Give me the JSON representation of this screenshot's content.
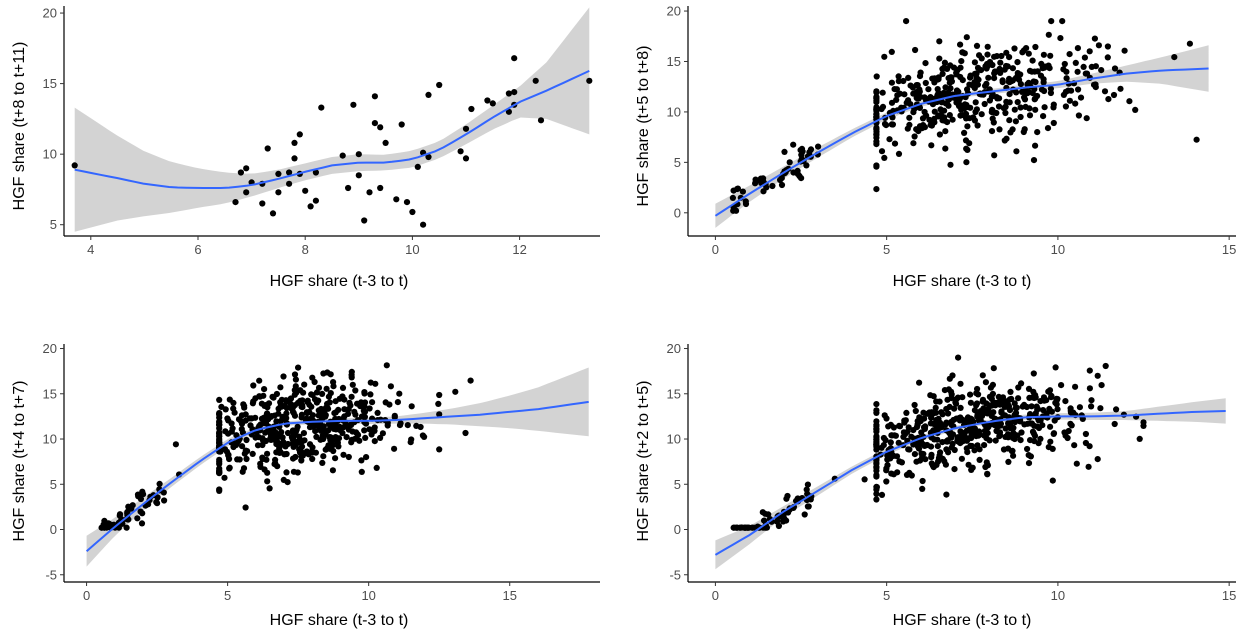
{
  "chart_data": [
    {
      "type": "scatter",
      "xlabel": "HGF share (t-3 to t)",
      "ylabel": "HGF share (t+8 to t+11)",
      "xlim": [
        3.5,
        13.5
      ],
      "ylim": [
        4.2,
        20.5
      ],
      "xticks": [
        4,
        6,
        8,
        10,
        12
      ],
      "yticks": [
        5,
        10,
        15,
        20
      ],
      "grid": false,
      "points": [
        [
          3.7,
          9.2
        ],
        [
          6.7,
          6.6
        ],
        [
          6.8,
          8.7
        ],
        [
          6.9,
          9.0
        ],
        [
          6.9,
          7.3
        ],
        [
          7.0,
          8.0
        ],
        [
          7.2,
          7.9
        ],
        [
          7.2,
          6.5
        ],
        [
          7.3,
          10.4
        ],
        [
          7.4,
          5.8
        ],
        [
          7.5,
          8.6
        ],
        [
          7.5,
          7.3
        ],
        [
          7.7,
          8.7
        ],
        [
          7.7,
          7.9
        ],
        [
          7.8,
          10.8
        ],
        [
          7.8,
          9.7
        ],
        [
          7.9,
          11.4
        ],
        [
          7.9,
          8.6
        ],
        [
          8.0,
          7.4
        ],
        [
          8.1,
          6.3
        ],
        [
          8.2,
          8.7
        ],
        [
          8.2,
          6.7
        ],
        [
          8.3,
          13.3
        ],
        [
          8.7,
          9.9
        ],
        [
          8.8,
          7.6
        ],
        [
          8.9,
          13.5
        ],
        [
          9.0,
          8.5
        ],
        [
          9.0,
          10.0
        ],
        [
          9.1,
          5.3
        ],
        [
          9.2,
          7.3
        ],
        [
          9.3,
          12.2
        ],
        [
          9.3,
          14.1
        ],
        [
          9.4,
          7.6
        ],
        [
          9.4,
          11.9
        ],
        [
          9.5,
          10.8
        ],
        [
          9.7,
          6.8
        ],
        [
          9.8,
          12.1
        ],
        [
          9.9,
          6.6
        ],
        [
          10.0,
          5.9
        ],
        [
          10.1,
          9.1
        ],
        [
          10.2,
          10.1
        ],
        [
          10.2,
          5.0
        ],
        [
          10.3,
          14.2
        ],
        [
          10.3,
          9.8
        ],
        [
          10.5,
          14.9
        ],
        [
          10.9,
          10.2
        ],
        [
          11.0,
          9.7
        ],
        [
          11.0,
          11.8
        ],
        [
          11.1,
          13.2
        ],
        [
          11.4,
          13.8
        ],
        [
          11.5,
          13.6
        ],
        [
          11.8,
          14.3
        ],
        [
          11.8,
          13.0
        ],
        [
          11.9,
          14.4
        ],
        [
          11.9,
          13.5
        ],
        [
          11.9,
          16.8
        ],
        [
          12.3,
          15.2
        ],
        [
          12.4,
          12.4
        ],
        [
          13.3,
          15.2
        ]
      ],
      "smooth": [
        [
          3.7,
          8.9
        ],
        [
          4.5,
          8.3
        ],
        [
          5.0,
          7.9
        ],
        [
          5.5,
          7.65
        ],
        [
          6.0,
          7.6
        ],
        [
          6.5,
          7.6
        ],
        [
          7.0,
          7.8
        ],
        [
          7.5,
          8.25
        ],
        [
          8.0,
          8.75
        ],
        [
          8.5,
          9.2
        ],
        [
          9.0,
          9.4
        ],
        [
          9.5,
          9.4
        ],
        [
          10.0,
          9.65
        ],
        [
          10.5,
          10.3
        ],
        [
          11.0,
          11.4
        ],
        [
          11.5,
          12.6
        ],
        [
          12.0,
          13.7
        ],
        [
          12.5,
          14.5
        ],
        [
          13.3,
          15.9
        ]
      ],
      "band_half_width": [
        [
          3.7,
          4.4
        ],
        [
          4.5,
          3.0
        ],
        [
          5.0,
          2.3
        ],
        [
          5.5,
          1.8
        ],
        [
          6.0,
          1.4
        ],
        [
          6.5,
          1.1
        ],
        [
          7.0,
          0.8
        ],
        [
          7.5,
          0.65
        ],
        [
          8.0,
          0.6
        ],
        [
          8.5,
          0.6
        ],
        [
          9.0,
          0.6
        ],
        [
          9.5,
          0.55
        ],
        [
          10.0,
          0.6
        ],
        [
          10.5,
          0.6
        ],
        [
          11.0,
          0.7
        ],
        [
          11.5,
          0.85
        ],
        [
          12.0,
          1.1
        ],
        [
          12.5,
          2.0
        ],
        [
          13.3,
          4.5
        ]
      ]
    },
    {
      "type": "scatter",
      "xlabel": "HGF share (t-3 to t)",
      "ylabel": "HGF share (t+5 to t+8)",
      "xlim": [
        -0.8,
        15.2
      ],
      "ylim": [
        -2.3,
        20.5
      ],
      "xticks": [
        0,
        5,
        10,
        15
      ],
      "yticks": [
        0,
        5,
        10,
        15,
        20
      ],
      "grid": false,
      "smooth": [
        [
          0.0,
          -0.3
        ],
        [
          1.0,
          1.9
        ],
        [
          2.0,
          4.0
        ],
        [
          3.0,
          6.0
        ],
        [
          4.0,
          7.9
        ],
        [
          5.0,
          9.6
        ],
        [
          6.0,
          10.8
        ],
        [
          7.0,
          11.6
        ],
        [
          8.0,
          12.0
        ],
        [
          9.0,
          12.4
        ],
        [
          10.0,
          12.7
        ],
        [
          11.0,
          13.3
        ],
        [
          12.0,
          13.8
        ],
        [
          13.0,
          14.1
        ],
        [
          14.4,
          14.3
        ]
      ],
      "band_half_width": [
        [
          0.0,
          1.2
        ],
        [
          1.0,
          0.8
        ],
        [
          2.0,
          0.6
        ],
        [
          3.0,
          0.5
        ],
        [
          4.0,
          0.4
        ],
        [
          5.0,
          0.35
        ],
        [
          6.0,
          0.3
        ],
        [
          7.0,
          0.25
        ],
        [
          8.0,
          0.25
        ],
        [
          9.0,
          0.3
        ],
        [
          10.0,
          0.35
        ],
        [
          11.0,
          0.5
        ],
        [
          12.0,
          0.8
        ],
        [
          13.0,
          1.3
        ],
        [
          14.4,
          2.3
        ]
      ],
      "points_generated": {
        "count": 520,
        "x_range": [
          0.5,
          14.4
        ],
        "noise": 2.4
      }
    },
    {
      "type": "scatter",
      "xlabel": "HGF share (t-3 to t)",
      "ylabel": "HGF share (t+4 to t+7)",
      "xlim": [
        -0.8,
        18.2
      ],
      "ylim": [
        -5.8,
        20.5
      ],
      "xticks": [
        0,
        5,
        10,
        15
      ],
      "yticks": [
        -5,
        0,
        5,
        10,
        15,
        20
      ],
      "grid": false,
      "smooth": [
        [
          0.0,
          -2.4
        ],
        [
          1.0,
          0.3
        ],
        [
          2.0,
          2.8
        ],
        [
          3.0,
          5.2
        ],
        [
          4.0,
          7.5
        ],
        [
          5.0,
          9.6
        ],
        [
          6.0,
          11.0
        ],
        [
          7.0,
          11.7
        ],
        [
          8.0,
          11.9
        ],
        [
          9.0,
          12.0
        ],
        [
          10.0,
          12.0
        ],
        [
          11.0,
          12.1
        ],
        [
          12.0,
          12.3
        ],
        [
          13.0,
          12.5
        ],
        [
          14.0,
          12.7
        ],
        [
          15.0,
          13.0
        ],
        [
          16.0,
          13.3
        ],
        [
          17.8,
          14.1
        ]
      ],
      "band_half_width": [
        [
          0.0,
          1.7
        ],
        [
          1.0,
          1.0
        ],
        [
          2.0,
          0.7
        ],
        [
          3.0,
          0.5
        ],
        [
          4.0,
          0.45
        ],
        [
          5.0,
          0.4
        ],
        [
          6.0,
          0.3
        ],
        [
          7.0,
          0.25
        ],
        [
          8.0,
          0.25
        ],
        [
          9.0,
          0.3
        ],
        [
          10.0,
          0.35
        ],
        [
          11.0,
          0.4
        ],
        [
          12.0,
          0.6
        ],
        [
          13.0,
          0.9
        ],
        [
          14.0,
          1.3
        ],
        [
          15.0,
          1.8
        ],
        [
          16.0,
          2.4
        ],
        [
          17.8,
          3.8
        ]
      ],
      "points_generated": {
        "count": 560,
        "x_range": [
          0.5,
          14.0
        ],
        "noise": 2.4
      }
    },
    {
      "type": "scatter",
      "xlabel": "HGF share (t-3 to t)",
      "ylabel": "HGF share (t+2 to t+5)",
      "xlim": [
        -0.8,
        15.2
      ],
      "ylim": [
        -5.8,
        20.5
      ],
      "xticks": [
        0,
        5,
        10,
        15
      ],
      "yticks": [
        -5,
        0,
        5,
        10,
        15,
        20
      ],
      "grid": false,
      "smooth": [
        [
          0.0,
          -2.8
        ],
        [
          1.0,
          -0.6
        ],
        [
          2.0,
          2.0
        ],
        [
          3.0,
          4.3
        ],
        [
          4.0,
          6.6
        ],
        [
          5.0,
          8.6
        ],
        [
          6.0,
          10.1
        ],
        [
          7.0,
          11.2
        ],
        [
          8.0,
          11.9
        ],
        [
          9.0,
          12.4
        ],
        [
          10.0,
          12.5
        ],
        [
          11.0,
          12.5
        ],
        [
          12.0,
          12.6
        ],
        [
          13.0,
          12.8
        ],
        [
          14.0,
          13.0
        ],
        [
          14.9,
          13.1
        ]
      ],
      "band_half_width": [
        [
          0.0,
          1.6
        ],
        [
          1.0,
          1.0
        ],
        [
          2.0,
          0.6
        ],
        [
          3.0,
          0.5
        ],
        [
          4.0,
          0.4
        ],
        [
          5.0,
          0.35
        ],
        [
          6.0,
          0.3
        ],
        [
          7.0,
          0.25
        ],
        [
          8.0,
          0.25
        ],
        [
          9.0,
          0.3
        ],
        [
          10.0,
          0.35
        ],
        [
          11.0,
          0.4
        ],
        [
          12.0,
          0.5
        ],
        [
          13.0,
          0.8
        ],
        [
          14.0,
          1.1
        ],
        [
          14.9,
          1.4
        ]
      ],
      "points_generated": {
        "count": 600,
        "x_range": [
          0.5,
          14.9
        ],
        "noise": 2.4
      }
    }
  ],
  "colors": {
    "points": "#000000",
    "smooth_line": "#3366FF",
    "band": "#C8C8C8",
    "axis": "#000000",
    "tick_text": "#4d4d4d"
  }
}
